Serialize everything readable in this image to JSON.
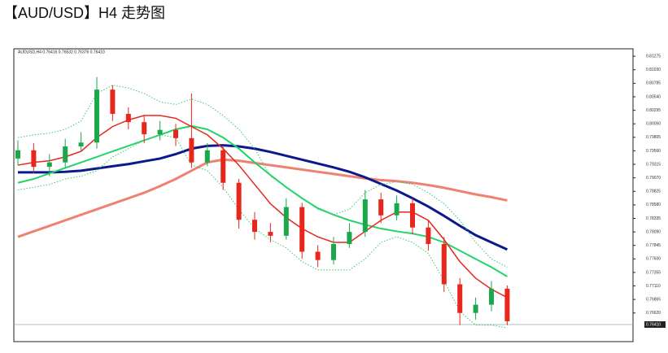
{
  "chart_data": {
    "type": "candlestick",
    "title": "【AUD/USD】H4 走势图",
    "info": "AUDUSD,H4  0.76416 0.76532 0.76376 0.76410",
    "ylim": [
      0.7613,
      0.8141
    ],
    "yticks": [
      {
        "value": 0.7662,
        "label": "0.76620"
      },
      {
        "value": 0.76865,
        "label": "0.76865"
      },
      {
        "value": 0.7711,
        "label": "0.77110"
      },
      {
        "value": 0.77355,
        "label": "0.77355"
      },
      {
        "value": 0.776,
        "label": "0.77600"
      },
      {
        "value": 0.77845,
        "label": "0.77845"
      },
      {
        "value": 0.7809,
        "label": "0.78090"
      },
      {
        "value": 0.78335,
        "label": "0.78335"
      },
      {
        "value": 0.7858,
        "label": "0.78580"
      },
      {
        "value": 0.78825,
        "label": "0.78825"
      },
      {
        "value": 0.7907,
        "label": "0.79070"
      },
      {
        "value": 0.79315,
        "label": "0.79315"
      },
      {
        "value": 0.7956,
        "label": "0.79560"
      },
      {
        "value": 0.79805,
        "label": "0.79805"
      },
      {
        "value": 0.8005,
        "label": "0.80050"
      },
      {
        "value": 0.80295,
        "label": "0.80295"
      },
      {
        "value": 0.8054,
        "label": "0.80540"
      },
      {
        "value": 0.80785,
        "label": "0.80785"
      },
      {
        "value": 0.8103,
        "label": "0.81030"
      },
      {
        "value": 0.81275,
        "label": "0.81275"
      }
    ],
    "last_price": {
      "value": 0.7641,
      "label": "0.76410"
    },
    "up_color": "#1aa84a",
    "down_color": "#e8261c",
    "candles": {
      "open": [
        0.7942,
        0.7957,
        0.7927,
        0.7935,
        0.7964,
        0.7971,
        0.8067,
        0.8023,
        0.8008,
        0.7986,
        0.7994,
        0.7979,
        0.7935,
        0.7957,
        0.7898,
        0.7831,
        0.7809,
        0.7802,
        0.7854,
        0.7773,
        0.7758,
        0.7787,
        0.7809,
        0.7868,
        0.7839,
        0.7861,
        0.7817,
        0.7787,
        0.7714,
        0.7662,
        0.7677,
        0.7706
      ],
      "high": [
        0.7975,
        0.797,
        0.795,
        0.7978,
        0.799,
        0.809,
        0.8075,
        0.8035,
        0.802,
        0.801,
        0.8005,
        0.806,
        0.797,
        0.7965,
        0.7905,
        0.7845,
        0.7825,
        0.787,
        0.7862,
        0.7785,
        0.78,
        0.7825,
        0.7885,
        0.788,
        0.7875,
        0.787,
        0.783,
        0.78,
        0.7725,
        0.769,
        0.772,
        0.7712
      ],
      "low": [
        0.793,
        0.7915,
        0.791,
        0.7925,
        0.7955,
        0.796,
        0.801,
        0.7995,
        0.797,
        0.7975,
        0.7965,
        0.7925,
        0.7928,
        0.7885,
        0.7815,
        0.7795,
        0.779,
        0.7795,
        0.776,
        0.7745,
        0.775,
        0.778,
        0.78,
        0.7825,
        0.783,
        0.7805,
        0.7775,
        0.77,
        0.764,
        0.765,
        0.7665,
        0.764
      ],
      "close": [
        0.7957,
        0.7927,
        0.7935,
        0.7964,
        0.7971,
        0.8067,
        0.8023,
        0.8008,
        0.7986,
        0.7994,
        0.7979,
        0.7935,
        0.7957,
        0.7898,
        0.7831,
        0.7809,
        0.7802,
        0.7854,
        0.7773,
        0.7758,
        0.7787,
        0.7809,
        0.7868,
        0.7839,
        0.7861,
        0.7817,
        0.7787,
        0.7714,
        0.7662,
        0.7677,
        0.7706,
        0.7647
      ]
    },
    "lines": [
      {
        "color": "#f08070",
        "width": 3,
        "values": [
          0.78,
          0.781,
          0.782,
          0.783,
          0.784,
          0.785,
          0.786,
          0.787,
          0.788,
          0.7892,
          0.7905,
          0.792,
          0.7935,
          0.794,
          0.7938,
          0.7934,
          0.793,
          0.7926,
          0.7922,
          0.7918,
          0.7914,
          0.791,
          0.7906,
          0.7903,
          0.7901,
          0.7898,
          0.7894,
          0.7889,
          0.7883,
          0.7877,
          0.7872,
          0.7866
        ]
      },
      {
        "color": "#0a1a8c",
        "width": 3,
        "values": [
          0.7917,
          0.7917,
          0.7917,
          0.7918,
          0.792,
          0.7924,
          0.7928,
          0.7932,
          0.7937,
          0.7942,
          0.795,
          0.796,
          0.7965,
          0.7966,
          0.7964,
          0.796,
          0.7954,
          0.7947,
          0.794,
          0.7933,
          0.7926,
          0.7918,
          0.7908,
          0.7896,
          0.7884,
          0.787,
          0.7855,
          0.7838,
          0.782,
          0.7803,
          0.779,
          0.7777
        ]
      },
      {
        "color": "#22d46a",
        "width": 2,
        "values": [
          0.7898,
          0.7905,
          0.7915,
          0.7925,
          0.7935,
          0.7945,
          0.7955,
          0.7965,
          0.7975,
          0.7985,
          0.7995,
          0.8001,
          0.7995,
          0.798,
          0.796,
          0.7935,
          0.7912,
          0.789,
          0.787,
          0.7852,
          0.784,
          0.783,
          0.7822,
          0.7815,
          0.781,
          0.7806,
          0.78,
          0.779,
          0.7775,
          0.776,
          0.7745,
          0.7728
        ]
      },
      {
        "color": "#e8261c",
        "width": 1.5,
        "values": [
          0.793,
          0.7935,
          0.7938,
          0.7945,
          0.7955,
          0.798,
          0.8,
          0.8012,
          0.802,
          0.802,
          0.8015,
          0.8,
          0.7985,
          0.796,
          0.793,
          0.7895,
          0.786,
          0.7835,
          0.7815,
          0.78,
          0.779,
          0.779,
          0.781,
          0.783,
          0.7845,
          0.7845,
          0.783,
          0.7795,
          0.7755,
          0.7725,
          0.7705,
          0.769
        ]
      },
      {
        "color": "#3cc878",
        "width": 1,
        "style": "dotted",
        "values": [
          0.798,
          0.7985,
          0.7988,
          0.7995,
          0.801,
          0.806,
          0.8075,
          0.807,
          0.806,
          0.8045,
          0.804,
          0.805,
          0.804,
          0.802,
          0.7995,
          0.796,
          0.791,
          0.789,
          0.787,
          0.785,
          0.784,
          0.785,
          0.788,
          0.7895,
          0.79,
          0.7895,
          0.788,
          0.786,
          0.783,
          0.779,
          0.776,
          0.7745
        ]
      },
      {
        "color": "#3cc878",
        "width": 1,
        "style": "dotted",
        "values": [
          0.7885,
          0.789,
          0.7895,
          0.7905,
          0.791,
          0.792,
          0.7945,
          0.796,
          0.7975,
          0.7985,
          0.798,
          0.793,
          0.792,
          0.789,
          0.785,
          0.7815,
          0.7795,
          0.778,
          0.7755,
          0.774,
          0.774,
          0.774,
          0.776,
          0.779,
          0.78,
          0.779,
          0.777,
          0.772,
          0.7665,
          0.764,
          0.764,
          0.7635
        ]
      }
    ]
  }
}
